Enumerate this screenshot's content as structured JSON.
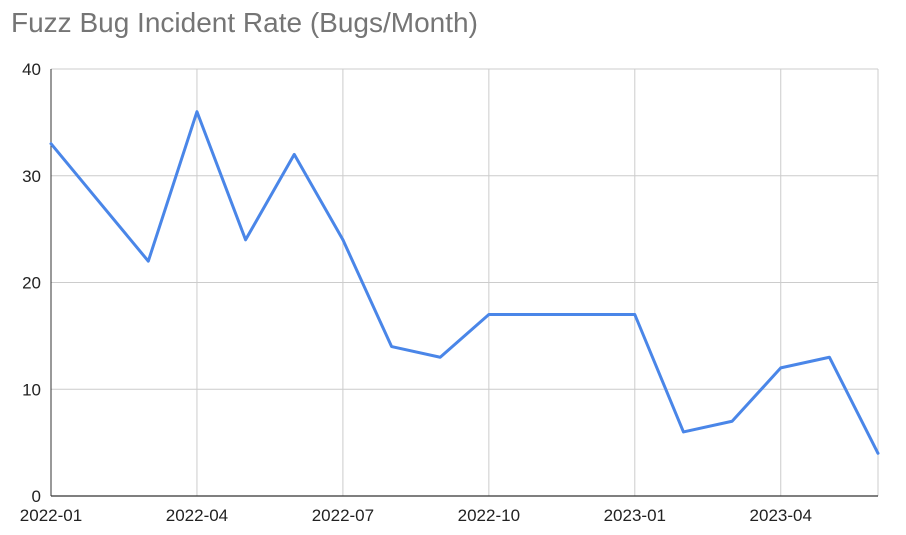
{
  "chart_data": {
    "type": "line",
    "title": "Fuzz Bug Incident Rate (Bugs/Month)",
    "xlabel": "",
    "ylabel": "",
    "x": [
      "2022-01",
      "2022-02",
      "2022-03",
      "2022-04",
      "2022-05",
      "2022-06",
      "2022-07",
      "2022-08",
      "2022-09",
      "2022-10",
      "2022-11",
      "2022-12",
      "2023-01",
      "2023-02",
      "2023-03",
      "2023-04",
      "2023-05",
      "2023-06"
    ],
    "series": [
      {
        "values": [
          33,
          27.5,
          22,
          36,
          24,
          32,
          24,
          14,
          13,
          17,
          17,
          17,
          17,
          6,
          7,
          12,
          13,
          4
        ],
        "color": "#4a86e8"
      }
    ],
    "xticks": [
      "2022-01",
      "2022-04",
      "2022-07",
      "2022-10",
      "2023-01",
      "2023-04"
    ],
    "yticks": [
      "0",
      "10",
      "20",
      "30",
      "40"
    ],
    "ylim": [
      0,
      40
    ],
    "grid": true,
    "legend": "none"
  }
}
